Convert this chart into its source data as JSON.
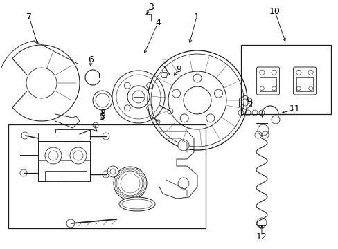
{
  "bg_color": "#ffffff",
  "line_color": "#1a1a1a",
  "lw": 0.7,
  "figsize": [
    4.89,
    3.6
  ],
  "dpi": 100
}
